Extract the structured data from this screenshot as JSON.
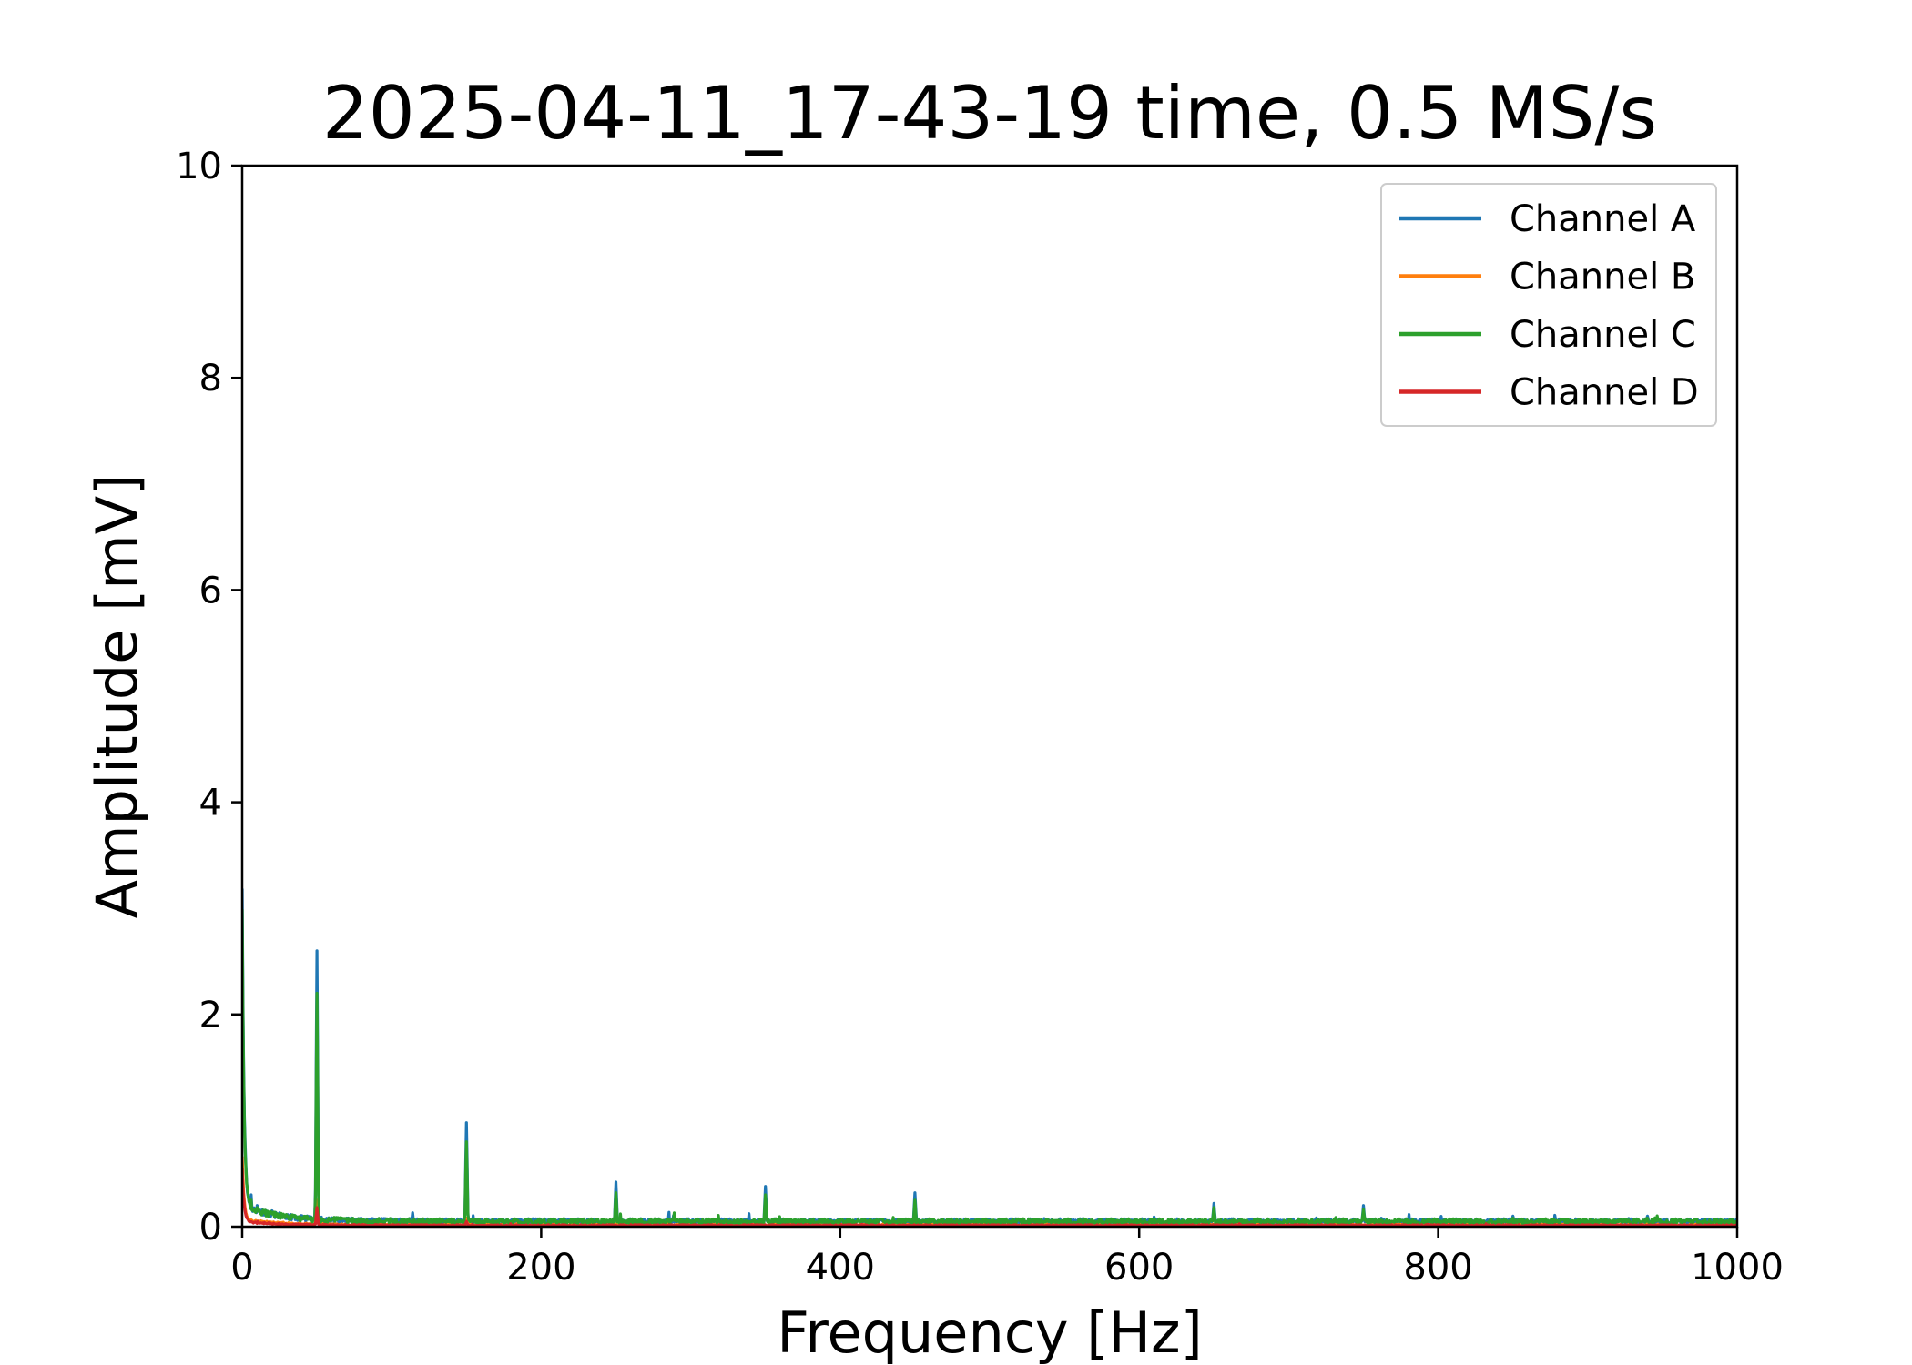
{
  "chart_data": {
    "type": "line",
    "title": "2025-04-11_17-43-19 time, 0.5 MS/s",
    "xlabel": "Frequency [Hz]",
    "ylabel": "Amplitude [mV]",
    "xlim": [
      0,
      1000
    ],
    "ylim": [
      0,
      10
    ],
    "xticks": [
      0,
      200,
      400,
      600,
      800,
      1000
    ],
    "xtick_labels": [
      "0",
      "200",
      "400",
      "600",
      "800",
      "1000"
    ],
    "yticks": [
      0,
      2,
      4,
      6,
      8,
      10
    ],
    "ytick_labels": [
      "0",
      "2",
      "4",
      "6",
      "8",
      "10"
    ],
    "grid": false,
    "legend_position": "top-right",
    "series": [
      {
        "name": "Channel A",
        "color": "#1f77b4",
        "noise_floor": 0.06,
        "peaks": [
          [
            0,
            3.0
          ],
          [
            3,
            0.4
          ],
          [
            6,
            0.3
          ],
          [
            10,
            0.2
          ],
          [
            20,
            0.15
          ],
          [
            50,
            2.6
          ],
          [
            150,
            0.98
          ],
          [
            250,
            0.42
          ],
          [
            350,
            0.38
          ],
          [
            450,
            0.32
          ],
          [
            650,
            0.22
          ],
          [
            750,
            0.2
          ],
          [
            850,
            0.1
          ],
          [
            940,
            0.1
          ]
        ]
      },
      {
        "name": "Channel B",
        "color": "#ff7f0e",
        "noise_floor": 0.02,
        "peaks": [
          [
            0,
            0.6
          ],
          [
            50,
            0.25
          ],
          [
            150,
            0.08
          ]
        ]
      },
      {
        "name": "Channel C",
        "color": "#2ca02c",
        "noise_floor": 0.06,
        "peaks": [
          [
            0,
            2.8
          ],
          [
            3,
            0.35
          ],
          [
            6,
            0.25
          ],
          [
            10,
            0.18
          ],
          [
            20,
            0.12
          ],
          [
            50,
            2.2
          ],
          [
            150,
            0.8
          ],
          [
            250,
            0.32
          ],
          [
            350,
            0.3
          ],
          [
            450,
            0.25
          ],
          [
            650,
            0.18
          ],
          [
            750,
            0.16
          ],
          [
            850,
            0.08
          ],
          [
            940,
            0.08
          ]
        ]
      },
      {
        "name": "Channel D",
        "color": "#d62728",
        "noise_floor": 0.015,
        "peaks": [
          [
            0,
            0.5
          ],
          [
            50,
            0.18
          ],
          [
            150,
            0.05
          ]
        ]
      }
    ]
  }
}
